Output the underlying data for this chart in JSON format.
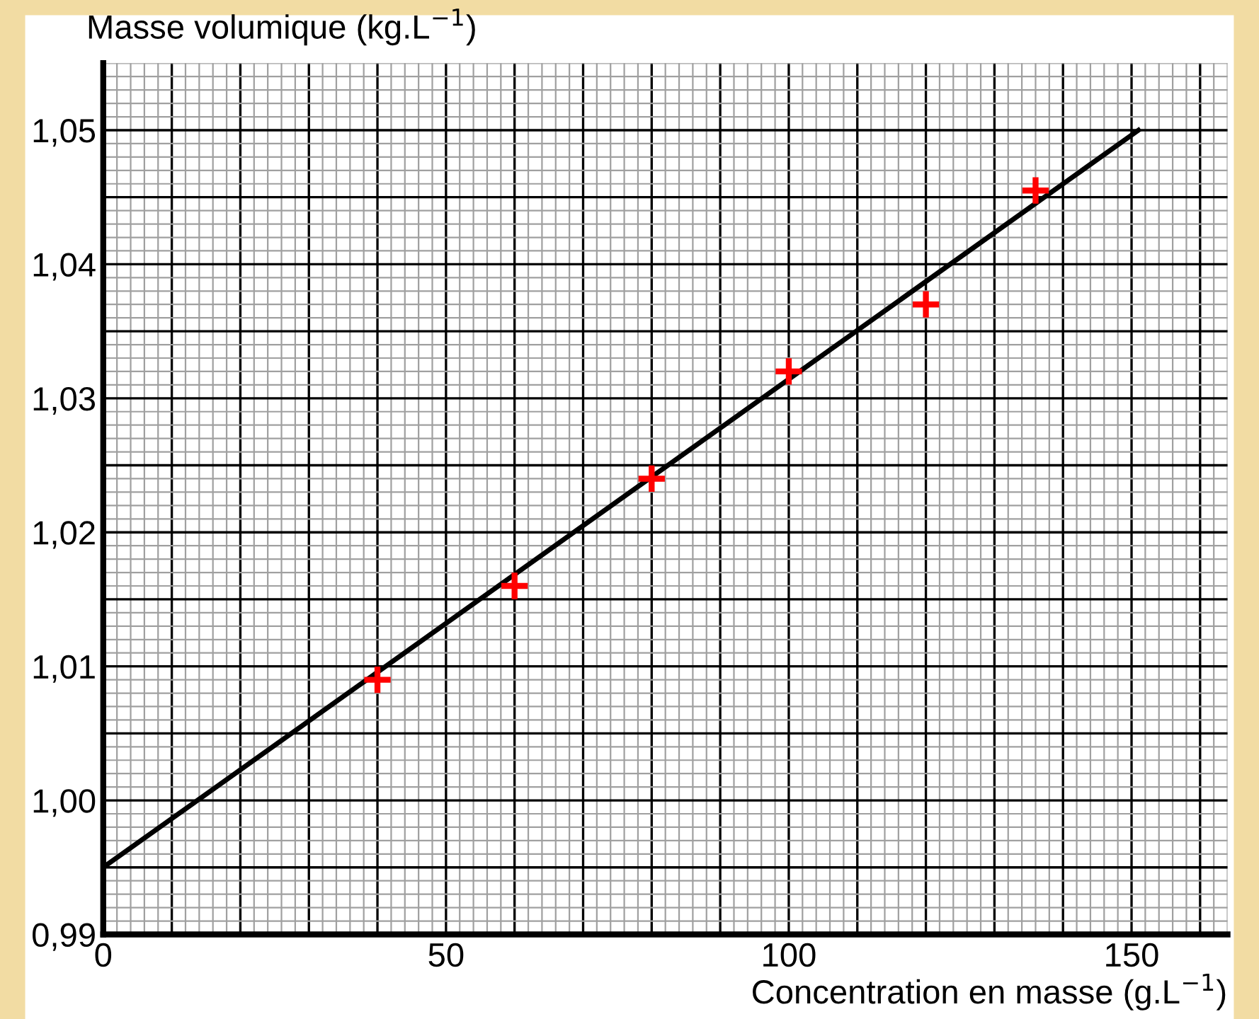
{
  "chart_data": {
    "type": "scatter",
    "xlabel": "Concentration en masse (g.L$^{−1}$)",
    "ylabel": "Masse volumique (kg.L$^{−1}$)",
    "x": [
      40,
      60,
      80,
      100,
      120,
      136
    ],
    "series": [
      {
        "color": "#ff0000",
        "marker": "cross",
        "values": [
          1.009,
          1.016,
          1.024,
          1.032,
          1.037,
          1.0455
        ]
      },
      {
        "type": "line",
        "color": "#000000",
        "x": [
          0,
          151
        ],
        "values": [
          0.995,
          1.05
        ],
        "line_style": "solid"
      }
    ],
    "xlim": [
      0,
      164
    ],
    "ylim": [
      0.99,
      1.055
    ],
    "xticks": [
      0,
      {
        "value": 10,
        "label": null
      },
      {
        "value": 20,
        "label": null
      },
      {
        "value": 30,
        "label": null
      },
      {
        "value": 40,
        "label": null
      },
      50,
      {
        "value": 60,
        "label": null
      },
      {
        "value": 70,
        "label": null
      },
      {
        "value": 80,
        "label": null
      },
      {
        "value": 90,
        "label": null
      },
      100,
      {
        "value": 110,
        "label": null
      },
      {
        "value": 120,
        "label": null
      },
      {
        "value": 130,
        "label": null
      },
      {
        "value": 140,
        "label": null
      },
      150,
      {
        "value": 160,
        "label": null
      }
    ],
    "yticks": [
      {
        "value": 0.99,
        "label": "0,99"
      },
      {
        "value": 0.995,
        "label": null
      },
      {
        "value": 1.0,
        "label": "1,00"
      },
      {
        "value": 1.005,
        "label": null
      },
      {
        "value": 1.01,
        "label": "1,01"
      },
      {
        "value": 1.015,
        "label": null
      },
      {
        "value": 1.02,
        "label": "1,02"
      },
      {
        "value": 1.025,
        "label": null
      },
      {
        "value": 1.03,
        "label": "1,03"
      },
      {
        "value": 1.035,
        "label": null
      },
      {
        "value": 1.04,
        "label": "1,04"
      },
      {
        "value": 1.045,
        "label": null
      },
      {
        "value": 1.05,
        "label": "1,05"
      }
    ],
    "grid": true
  }
}
